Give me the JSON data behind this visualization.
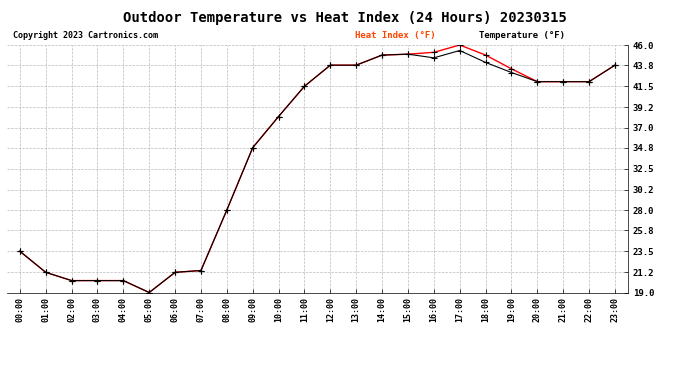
{
  "title": "Outdoor Temperature vs Heat Index (24 Hours) 20230315",
  "copyright": "Copyright 2023 Cartronics.com",
  "legend_heat": "Heat Index (°F)",
  "legend_temp": "Temperature (°F)",
  "x_labels": [
    "00:00",
    "01:00",
    "02:00",
    "03:00",
    "04:00",
    "05:00",
    "06:00",
    "07:00",
    "08:00",
    "09:00",
    "10:00",
    "11:00",
    "12:00",
    "13:00",
    "14:00",
    "15:00",
    "16:00",
    "17:00",
    "18:00",
    "19:00",
    "20:00",
    "21:00",
    "22:00",
    "23:00"
  ],
  "heat_index": [
    23.5,
    21.2,
    20.3,
    20.3,
    20.3,
    19.0,
    21.2,
    21.4,
    28.0,
    34.8,
    38.2,
    41.5,
    43.8,
    43.8,
    44.9,
    45.0,
    45.2,
    46.0,
    44.9,
    43.4,
    42.0,
    42.0,
    42.0,
    43.8
  ],
  "temperature": [
    23.5,
    21.2,
    20.3,
    20.3,
    20.3,
    19.0,
    21.2,
    21.4,
    28.0,
    34.8,
    38.2,
    41.5,
    43.8,
    43.8,
    44.9,
    45.0,
    44.6,
    45.4,
    44.1,
    43.0,
    42.0,
    42.0,
    42.0,
    43.8
  ],
  "ylim": [
    19.0,
    46.0
  ],
  "yticks": [
    19.0,
    21.2,
    23.5,
    25.8,
    28.0,
    30.2,
    32.5,
    34.8,
    37.0,
    39.2,
    41.5,
    43.8,
    46.0
  ],
  "heat_color": "#ff0000",
  "temp_color": "#000000",
  "bg_color": "#ffffff",
  "grid_color": "#bbbbbb",
  "title_fontsize": 10,
  "copyright_color": "#000000",
  "legend_heat_color": "#ff4500",
  "legend_temp_color": "#000000"
}
